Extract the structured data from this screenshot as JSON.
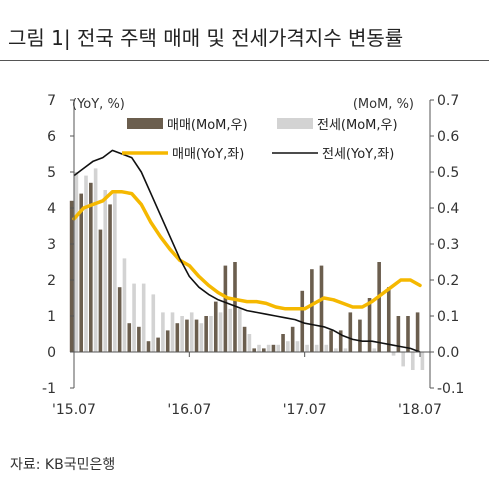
{
  "title": "그림 1|   전국 주택 매매 및 전세가격지수 변동률",
  "source": "자료: KB국민은행",
  "colors": {
    "sale_mom": "#6b5e4e",
    "jeonse_mom": "#d3d3d3",
    "sale_yoy": "#f5b800",
    "jeonse_yoy": "#111111"
  },
  "chart_data": {
    "type": "bar+line",
    "left_axis_label": "(YoY, %)",
    "right_axis_label": "(MoM, %)",
    "left_ylim": [
      -1,
      7
    ],
    "right_ylim": [
      -0.1,
      0.7
    ],
    "left_ticks": [
      "7",
      "6",
      "5",
      "4",
      "3",
      "2",
      "1",
      "0",
      "-1"
    ],
    "right_ticks": [
      "0.7",
      "0.6",
      "0.5",
      "0.4",
      "0.3",
      "0.2",
      "0.1",
      "0.0",
      "-0.1"
    ],
    "x_tick_labels": [
      "'15.07",
      "'16.07",
      "'17.07",
      "'18.07"
    ],
    "x_tick_indices": [
      0,
      12,
      24,
      36
    ],
    "months": [
      "15.07",
      "15.08",
      "15.09",
      "15.10",
      "15.11",
      "15.12",
      "16.01",
      "16.02",
      "16.03",
      "16.04",
      "16.05",
      "16.06",
      "16.07",
      "16.08",
      "16.09",
      "16.10",
      "16.11",
      "16.12",
      "17.01",
      "17.02",
      "17.03",
      "17.04",
      "17.05",
      "17.06",
      "17.07",
      "17.08",
      "17.09",
      "17.10",
      "17.11",
      "17.12",
      "18.01",
      "18.02",
      "18.03",
      "18.04",
      "18.05",
      "18.06",
      "18.07"
    ],
    "series": [
      {
        "name": "매매(MoM,우)",
        "kind": "bar",
        "axis": "right",
        "values": [
          0.42,
          0.44,
          0.47,
          0.34,
          0.41,
          0.18,
          0.08,
          0.07,
          0.03,
          0.04,
          0.06,
          0.08,
          0.09,
          0.09,
          0.1,
          0.14,
          0.24,
          0.25,
          0.07,
          0.01,
          0.01,
          0.02,
          0.05,
          0.07,
          0.17,
          0.23,
          0.24,
          0.06,
          0.06,
          0.11,
          0.09,
          0.15,
          0.25,
          0.18,
          0.1,
          0.1,
          0.11
        ]
      },
      {
        "name": "전세(MoM,우)",
        "kind": "bar",
        "axis": "right",
        "values": [
          0.5,
          0.49,
          0.51,
          0.45,
          0.44,
          0.26,
          0.19,
          0.19,
          0.16,
          0.11,
          0.11,
          0.1,
          0.11,
          0.08,
          0.1,
          0.11,
          0.12,
          0.12,
          0.05,
          0.02,
          0.02,
          0.02,
          0.03,
          0.03,
          0.02,
          0.02,
          0.02,
          0.01,
          0.01,
          0.0,
          0.0,
          0.01,
          0.0,
          -0.01,
          -0.04,
          -0.05,
          -0.05
        ]
      },
      {
        "name": "매매(YoY,좌)",
        "kind": "line",
        "axis": "left",
        "values": [
          3.7,
          4.0,
          4.1,
          4.2,
          4.45,
          4.45,
          4.4,
          4.1,
          3.6,
          3.2,
          2.85,
          2.55,
          2.4,
          2.1,
          1.85,
          1.65,
          1.5,
          1.45,
          1.4,
          1.4,
          1.35,
          1.25,
          1.2,
          1.2,
          1.2,
          1.35,
          1.5,
          1.45,
          1.35,
          1.25,
          1.25,
          1.4,
          1.6,
          1.8,
          2.0,
          2.0,
          1.85
        ]
      },
      {
        "name": "전세(YoY,좌)",
        "kind": "line",
        "axis": "left",
        "values": [
          4.9,
          5.1,
          5.3,
          5.4,
          5.6,
          5.5,
          5.4,
          5.0,
          4.4,
          3.8,
          3.2,
          2.6,
          2.1,
          1.8,
          1.6,
          1.45,
          1.35,
          1.25,
          1.15,
          1.1,
          1.05,
          1.0,
          0.95,
          0.9,
          0.8,
          0.75,
          0.7,
          0.6,
          0.45,
          0.35,
          0.3,
          0.3,
          0.25,
          0.2,
          0.15,
          0.1,
          0.0
        ]
      }
    ],
    "legend": {
      "placement": "top"
    }
  }
}
